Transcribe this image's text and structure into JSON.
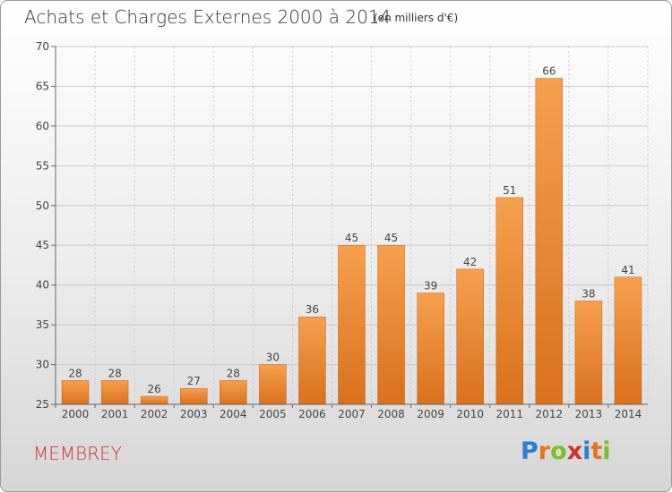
{
  "header": {
    "title": "Achats et Charges Externes 2000 à 2014",
    "unit": "(en milliers d'€)"
  },
  "footer": {
    "commune": "MEMBREY",
    "logo": [
      "P",
      "r",
      "o",
      "x",
      "i",
      "t",
      "i"
    ],
    "logo_colors": [
      "#2a7fcf",
      "#e8731e",
      "#7bbd2a",
      "#d0322e",
      "#2a7fcf",
      "#e8731e",
      "#7bbd2a"
    ]
  },
  "chart_data": {
    "type": "bar",
    "title": "Achats et Charges Externes 2000 à 2014",
    "subtitle": "(en milliers d'€)",
    "categories": [
      "2000",
      "2001",
      "2002",
      "2003",
      "2004",
      "2005",
      "2006",
      "2007",
      "2008",
      "2009",
      "2010",
      "2011",
      "2012",
      "2013",
      "2014"
    ],
    "values": [
      28,
      28,
      26,
      27,
      28,
      30,
      36,
      45,
      45,
      39,
      42,
      51,
      66,
      38,
      41
    ],
    "ylim": [
      25,
      70
    ],
    "yticks": [
      25,
      30,
      35,
      40,
      45,
      50,
      55,
      60,
      65,
      70
    ],
    "grid": true,
    "bar_color_light": "#f6a04e",
    "bar_color_dark": "#d9701c",
    "grid_color": "#c8c8c8"
  }
}
